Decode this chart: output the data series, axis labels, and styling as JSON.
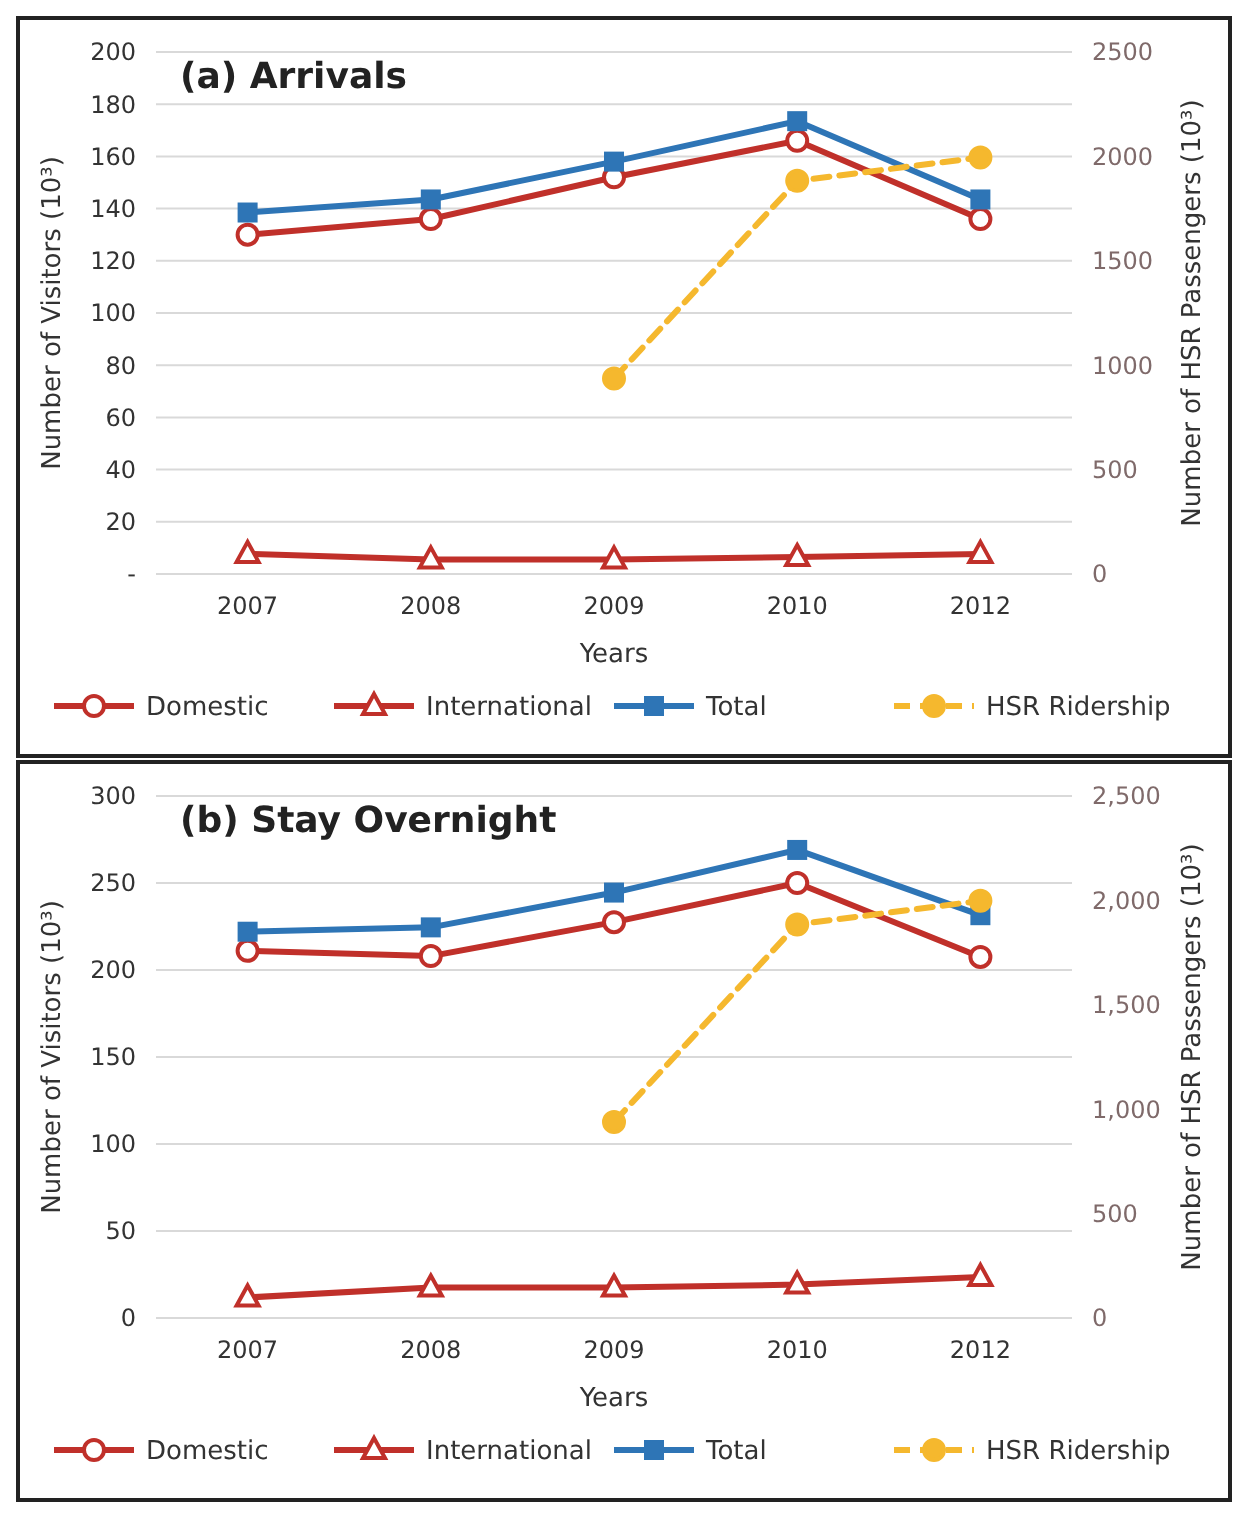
{
  "chart_data": [
    {
      "type": "line",
      "title": "(a) Arrivals",
      "xlabel": "Years",
      "ylabel": "Number of Visitors (10³)",
      "y2label": "Number of HSR Passengers (10³)",
      "categories": [
        "2007",
        "2008",
        "2009",
        "2010",
        "2012"
      ],
      "ylim": [
        0,
        200
      ],
      "yticks": [
        {
          "value": 0,
          "label": "-"
        },
        20,
        40,
        60,
        80,
        100,
        120,
        140,
        160,
        180,
        200
      ],
      "y2lim": [
        0,
        2500
      ],
      "y2ticks": [
        0,
        500,
        1000,
        1500,
        2000,
        2500
      ],
      "grid": "y",
      "legend": "bottom",
      "series": [
        {
          "name": "Domestic",
          "color": "#c0302a",
          "marker": "circle",
          "values": [
            130,
            136,
            152,
            166,
            136
          ]
        },
        {
          "name": "International",
          "color": "#c0302a",
          "marker": "triangle",
          "values": [
            7.7,
            5.6,
            5.6,
            6.5,
            7.7
          ]
        },
        {
          "name": "Total",
          "color": "#2e75b6",
          "marker": "square",
          "values": [
            138.5,
            143.5,
            158,
            173.5,
            143.5
          ]
        },
        {
          "name": "HSR Ridership",
          "color": "#f5b82e",
          "marker": "circle",
          "line_style": "dashed",
          "axis": "y2",
          "values": [
            null,
            null,
            936,
            1883,
            1995
          ]
        }
      ]
    },
    {
      "type": "line",
      "title": "(b) Stay Overnight",
      "xlabel": "Years",
      "ylabel": "Number of Visitors (10³)",
      "y2label": "Number of HSR Passengers (10³)",
      "categories": [
        "2007",
        "2008",
        "2009",
        "2010",
        "2012"
      ],
      "ylim": [
        0,
        300
      ],
      "yticks": [
        0,
        50,
        100,
        150,
        200,
        250,
        300
      ],
      "y2lim": [
        0,
        2500
      ],
      "y2ticks": [
        0,
        500,
        {
          "value": 1000,
          "label": "1,000"
        },
        {
          "value": 1500,
          "label": "1,500"
        },
        {
          "value": 2000,
          "label": "2,000"
        },
        {
          "value": 2500,
          "label": "2,500"
        }
      ],
      "grid": "y",
      "legend": "bottom",
      "series": [
        {
          "name": "Domestic",
          "color": "#c0302a",
          "marker": "circle",
          "values": [
            211,
            208,
            227.5,
            250,
            207.5
          ]
        },
        {
          "name": "International",
          "color": "#c0302a",
          "marker": "triangle",
          "values": [
            11.8,
            17.5,
            17.5,
            19.2,
            23.6
          ]
        },
        {
          "name": "Total",
          "color": "#2e75b6",
          "marker": "square",
          "values": [
            222,
            224.5,
            244.5,
            269,
            231.5
          ]
        },
        {
          "name": "HSR Ridership",
          "color": "#f5b82e",
          "marker": "circle",
          "line_style": "dashed",
          "axis": "y2",
          "values": [
            null,
            null,
            939,
            1885,
            1998
          ]
        }
      ]
    }
  ]
}
